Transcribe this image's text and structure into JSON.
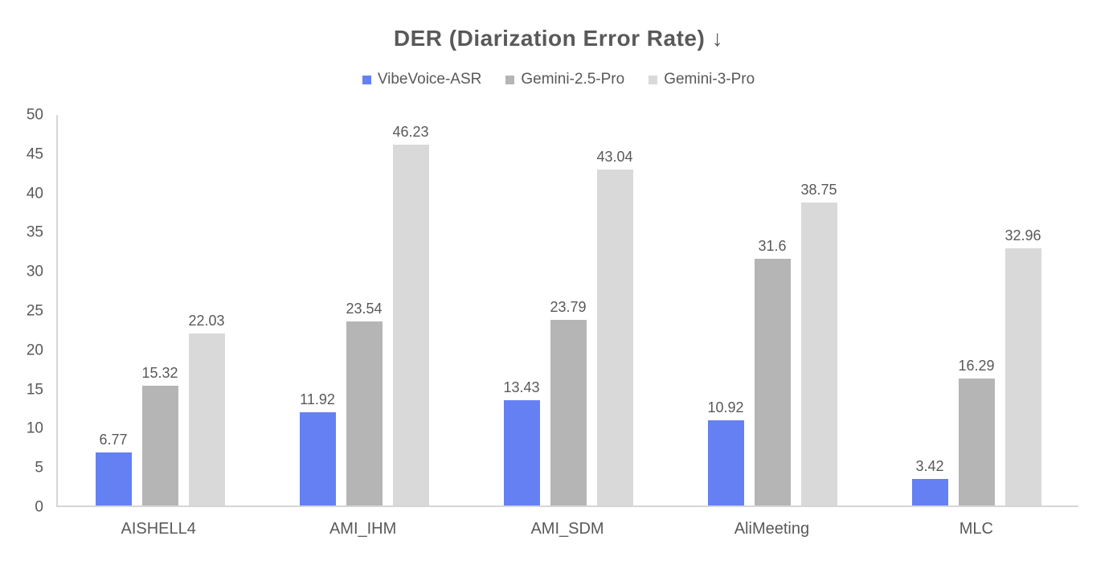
{
  "chart_data": {
    "type": "bar",
    "title": "DER (Diarization Error Rate) ↓",
    "categories": [
      "AISHELL4",
      "AMI_IHM",
      "AMI_SDM",
      "AliMeeting",
      "MLC"
    ],
    "series": [
      {
        "name": "VibeVoice-ASR",
        "color": "#6480F2",
        "values": [
          6.77,
          11.92,
          13.43,
          10.92,
          3.42
        ]
      },
      {
        "name": "Gemini-2.5-Pro",
        "color": "#b5b5b5",
        "values": [
          15.32,
          23.54,
          23.79,
          31.6,
          16.29
        ]
      },
      {
        "name": "Gemini-3-Pro",
        "color": "#d9d9d9",
        "values": [
          22.03,
          46.23,
          43.04,
          38.75,
          32.96
        ]
      }
    ],
    "xlabel": "",
    "ylabel": "",
    "ylim": [
      0,
      50
    ],
    "ytick_step": 5,
    "grid": false,
    "legend_position": "top",
    "value_labels": true,
    "axis_color": "#d6d6d6",
    "text_color": "#595959"
  }
}
